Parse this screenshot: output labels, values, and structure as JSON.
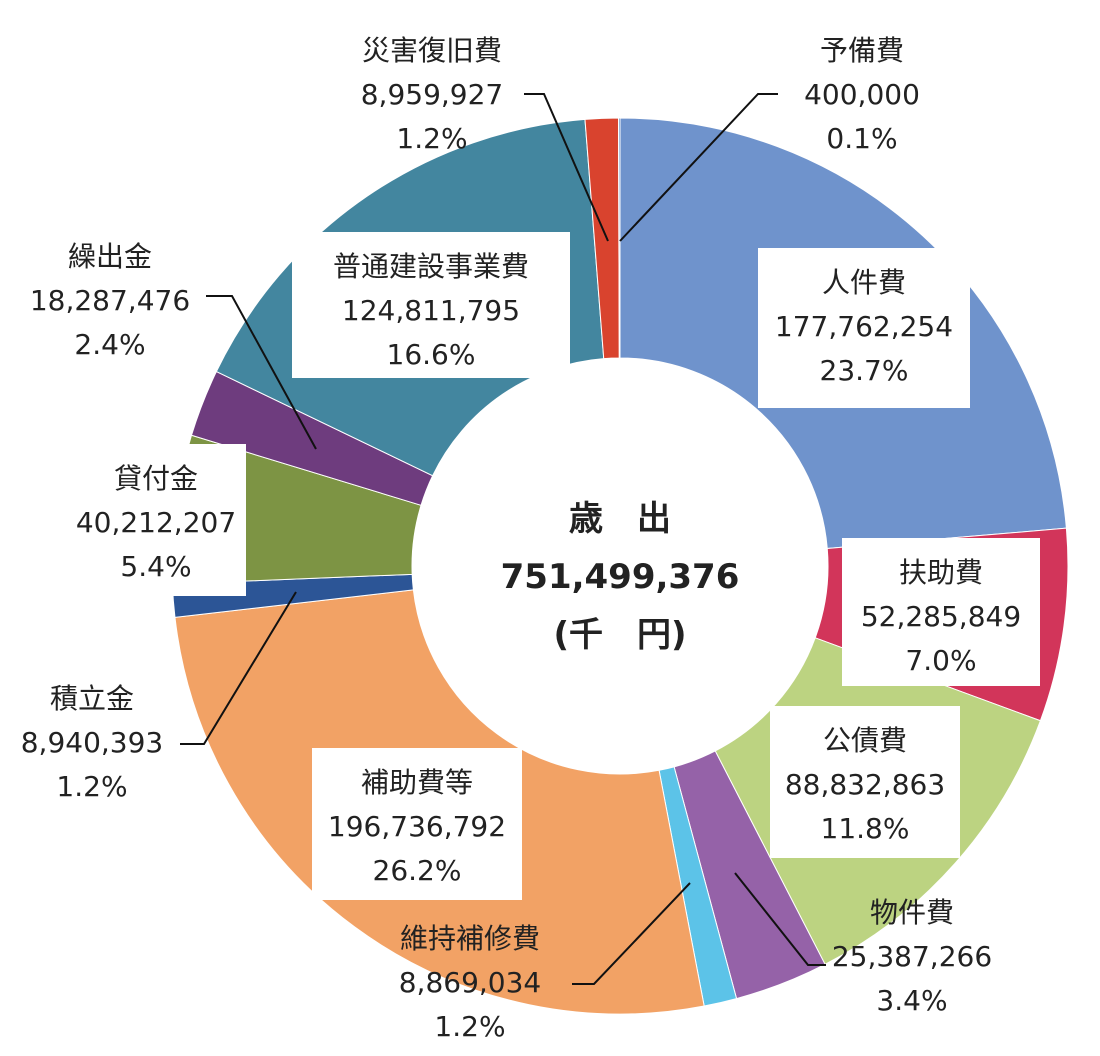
{
  "chart_data": {
    "type": "donut",
    "center": {
      "title": "歳　出",
      "total": "751,499,376",
      "unit": "(千　円)"
    },
    "slices": [
      {
        "name": "人件費",
        "value": 177762254,
        "value_text": "177,762,254",
        "percent": "23.7%",
        "color": "#6f93cc"
      },
      {
        "name": "扶助費",
        "value": 52285849,
        "value_text": "52,285,849",
        "percent": "7.0%",
        "color": "#d2355a"
      },
      {
        "name": "公債費",
        "value": 88832863,
        "value_text": "88,832,863",
        "percent": "11.8%",
        "color": "#bcd381"
      },
      {
        "name": "物件費",
        "value": 25387266,
        "value_text": "25,387,266",
        "percent": "3.4%",
        "color": "#9562a8"
      },
      {
        "name": "維持補修費",
        "value": 8869034,
        "value_text": "8,869,034",
        "percent": "1.2%",
        "color": "#5cc3e8"
      },
      {
        "name": "補助費等",
        "value": 196736792,
        "value_text": "196,736,792",
        "percent": "26.2%",
        "color": "#f2a265"
      },
      {
        "name": "積立金",
        "value": 8940393,
        "value_text": "8,940,393",
        "percent": "1.2%",
        "color": "#2c5596"
      },
      {
        "name": "貸付金",
        "value": 40212207,
        "value_text": "40,212,207",
        "percent": "5.4%",
        "color": "#7d9444"
      },
      {
        "name": "繰出金",
        "value": 18287476,
        "value_text": "18,287,476",
        "percent": "2.4%",
        "color": "#6e3c7e"
      },
      {
        "name": "普通建設事業費",
        "value": 124811795,
        "value_text": "124,811,795",
        "percent": "16.6%",
        "color": "#43869f"
      },
      {
        "name": "災害復旧費",
        "value": 8959927,
        "value_text": "8,959,927",
        "percent": "1.2%",
        "color": "#d9432e"
      },
      {
        "name": "予備費",
        "value": 400000,
        "value_text": "400,000",
        "percent": "0.1%",
        "color": "#2f6fb5"
      }
    ]
  }
}
